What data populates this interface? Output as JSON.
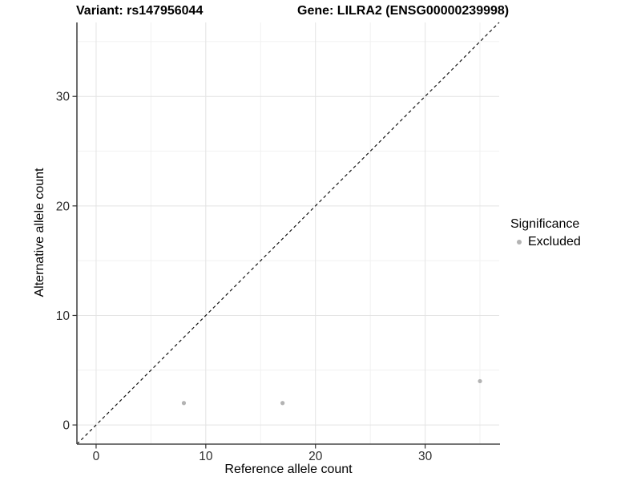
{
  "titles": {
    "variant": "Variant: rs147956044",
    "gene": "Gene: LILRA2 (ENSG00000239998)"
  },
  "legend": {
    "title": "Significance",
    "items": [
      {
        "label": "Excluded",
        "color": "#b3b3b3"
      }
    ]
  },
  "chart_data": {
    "type": "scatter",
    "title": "Variant: rs147956044 | Gene: LILRA2 (ENSG00000239998)",
    "xlabel": "Reference allele count",
    "ylabel": "Alternative allele count",
    "xlim": [
      -1.75,
      36.75
    ],
    "ylim": [
      -1.75,
      36.75
    ],
    "x_major_ticks": [
      0,
      10,
      20,
      30
    ],
    "y_major_ticks": [
      0,
      10,
      20,
      30
    ],
    "x_minor_gridlines": [
      5,
      15,
      25,
      35
    ],
    "y_minor_gridlines": [
      5,
      15,
      25,
      35
    ],
    "grid": true,
    "legend_title": "Significance",
    "legend_position": "right",
    "identity_line": {
      "slope": 1,
      "intercept": 0,
      "style": "dashed",
      "color": "#141414"
    },
    "series": [
      {
        "name": "Excluded",
        "color": "#b3b3b3",
        "points": [
          {
            "x": 8,
            "y": 2
          },
          {
            "x": 17,
            "y": 2
          },
          {
            "x": 35,
            "y": 4
          }
        ]
      }
    ]
  },
  "colors": {
    "grid_major": "#e3e3e3",
    "grid_minor": "#f1f1f1",
    "axis_line": "#474747",
    "tick_mark": "#333333",
    "tick_label": "#2e2e2e"
  }
}
